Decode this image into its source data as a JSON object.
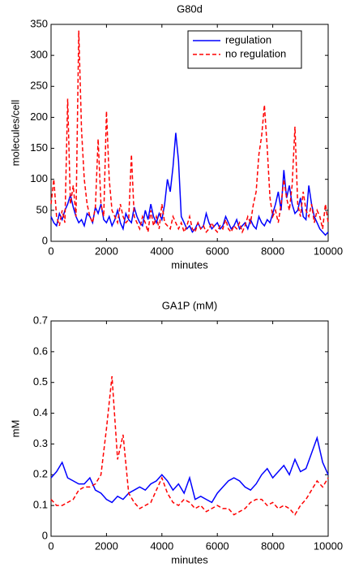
{
  "chart_data": [
    {
      "type": "line",
      "title": "G80d",
      "x_label": "minutes",
      "y_label": "molecules/cell",
      "x": [
        0,
        100,
        200,
        300,
        400,
        500,
        600,
        700,
        800,
        900,
        1000,
        1100,
        1200,
        1300,
        1400,
        1500,
        1600,
        1700,
        1800,
        1900,
        2000,
        2100,
        2200,
        2300,
        2400,
        2500,
        2600,
        2700,
        2800,
        2900,
        3000,
        3100,
        3200,
        3300,
        3400,
        3500,
        3600,
        3700,
        3800,
        3900,
        4000,
        4100,
        4200,
        4300,
        4400,
        4500,
        4600,
        4700,
        4800,
        4900,
        5000,
        5100,
        5200,
        5300,
        5400,
        5500,
        5600,
        5700,
        5800,
        5900,
        6000,
        6100,
        6200,
        6300,
        6400,
        6500,
        6600,
        6700,
        6800,
        6900,
        7000,
        7100,
        7200,
        7300,
        7400,
        7500,
        7600,
        7700,
        7800,
        7900,
        8000,
        8100,
        8200,
        8300,
        8400,
        8500,
        8600,
        8700,
        8800,
        8900,
        9000,
        9100,
        9200,
        9300,
        9400,
        9500,
        9600,
        9700,
        9800,
        9900,
        10000
      ],
      "series": [
        {
          "name": "regulation",
          "color": "#0000ff",
          "dash": false,
          "values": [
            40,
            30,
            25,
            45,
            35,
            50,
            60,
            75,
            55,
            40,
            30,
            35,
            25,
            45,
            40,
            30,
            55,
            45,
            60,
            35,
            30,
            40,
            25,
            35,
            50,
            30,
            20,
            45,
            35,
            30,
            55,
            40,
            30,
            25,
            50,
            35,
            60,
            40,
            30,
            45,
            35,
            60,
            100,
            80,
            120,
            175,
            130,
            40,
            30,
            20,
            25,
            15,
            20,
            30,
            20,
            25,
            45,
            30,
            20,
            25,
            30,
            20,
            25,
            40,
            30,
            20,
            25,
            35,
            20,
            25,
            30,
            20,
            35,
            25,
            20,
            40,
            30,
            25,
            35,
            30,
            45,
            60,
            80,
            50,
            115,
            70,
            90,
            60,
            45,
            50,
            70,
            40,
            35,
            90,
            60,
            40,
            30,
            20,
            15,
            10,
            15
          ]
        },
        {
          "name": "no regulation",
          "color": "#ff0000",
          "dash": true,
          "values": [
            60,
            100,
            40,
            25,
            50,
            30,
            230,
            60,
            90,
            40,
            340,
            180,
            100,
            60,
            40,
            30,
            55,
            165,
            60,
            40,
            210,
            100,
            50,
            40,
            30,
            60,
            40,
            30,
            35,
            140,
            40,
            30,
            20,
            40,
            30,
            15,
            50,
            25,
            40,
            20,
            60,
            30,
            25,
            20,
            40,
            30,
            20,
            30,
            15,
            25,
            40,
            20,
            15,
            30,
            20,
            25,
            15,
            20,
            30,
            20,
            15,
            25,
            20,
            35,
            20,
            15,
            25,
            20,
            30,
            15,
            25,
            40,
            30,
            60,
            80,
            140,
            170,
            220,
            150,
            70,
            40,
            50,
            30,
            60,
            100,
            70,
            50,
            90,
            185,
            60,
            40,
            80,
            50,
            40,
            60,
            30,
            50,
            40,
            20,
            60,
            30
          ]
        }
      ],
      "xlim": [
        0,
        10000
      ],
      "xticks": [
        0,
        2000,
        4000,
        6000,
        8000,
        10000
      ],
      "ylim": [
        0,
        350
      ],
      "yticks": [
        0,
        50,
        100,
        150,
        200,
        250,
        300,
        350
      ],
      "legend": "upper right"
    },
    {
      "type": "line",
      "title": "GA1P (mM)",
      "x_label": "minutes",
      "y_label": "mM",
      "x": [
        0,
        200,
        400,
        600,
        800,
        1000,
        1200,
        1400,
        1600,
        1800,
        2000,
        2200,
        2400,
        2600,
        2800,
        3000,
        3200,
        3400,
        3600,
        3800,
        4000,
        4200,
        4400,
        4600,
        4800,
        5000,
        5200,
        5400,
        5600,
        5800,
        6000,
        6200,
        6400,
        6600,
        6800,
        7000,
        7200,
        7400,
        7600,
        7800,
        8000,
        8200,
        8400,
        8600,
        8800,
        9000,
        9200,
        9400,
        9600,
        9800,
        10000
      ],
      "series": [
        {
          "color": "#0000ff",
          "dash": false,
          "values": [
            0.19,
            0.21,
            0.24,
            0.19,
            0.18,
            0.17,
            0.17,
            0.19,
            0.15,
            0.14,
            0.12,
            0.11,
            0.13,
            0.12,
            0.14,
            0.15,
            0.16,
            0.15,
            0.17,
            0.18,
            0.2,
            0.18,
            0.15,
            0.17,
            0.14,
            0.19,
            0.12,
            0.13,
            0.12,
            0.11,
            0.14,
            0.16,
            0.18,
            0.19,
            0.18,
            0.16,
            0.15,
            0.17,
            0.2,
            0.22,
            0.19,
            0.21,
            0.23,
            0.2,
            0.25,
            0.21,
            0.22,
            0.27,
            0.32,
            0.24,
            0.2
          ]
        },
        {
          "color": "#ff0000",
          "dash": true,
          "values": [
            0.12,
            0.1,
            0.1,
            0.11,
            0.12,
            0.15,
            0.16,
            0.16,
            0.17,
            0.2,
            0.35,
            0.52,
            0.25,
            0.33,
            0.14,
            0.11,
            0.09,
            0.1,
            0.11,
            0.15,
            0.19,
            0.14,
            0.11,
            0.1,
            0.12,
            0.11,
            0.09,
            0.1,
            0.08,
            0.09,
            0.1,
            0.09,
            0.09,
            0.07,
            0.08,
            0.09,
            0.11,
            0.12,
            0.12,
            0.1,
            0.11,
            0.09,
            0.1,
            0.09,
            0.07,
            0.1,
            0.12,
            0.15,
            0.18,
            0.16,
            0.19
          ]
        }
      ],
      "xlim": [
        0,
        10000
      ],
      "xticks": [
        0,
        2000,
        4000,
        6000,
        8000,
        10000
      ],
      "ylim": [
        0,
        0.7
      ],
      "yticks": [
        0,
        0.1,
        0.2,
        0.3,
        0.4,
        0.5,
        0.6,
        0.7
      ]
    }
  ]
}
